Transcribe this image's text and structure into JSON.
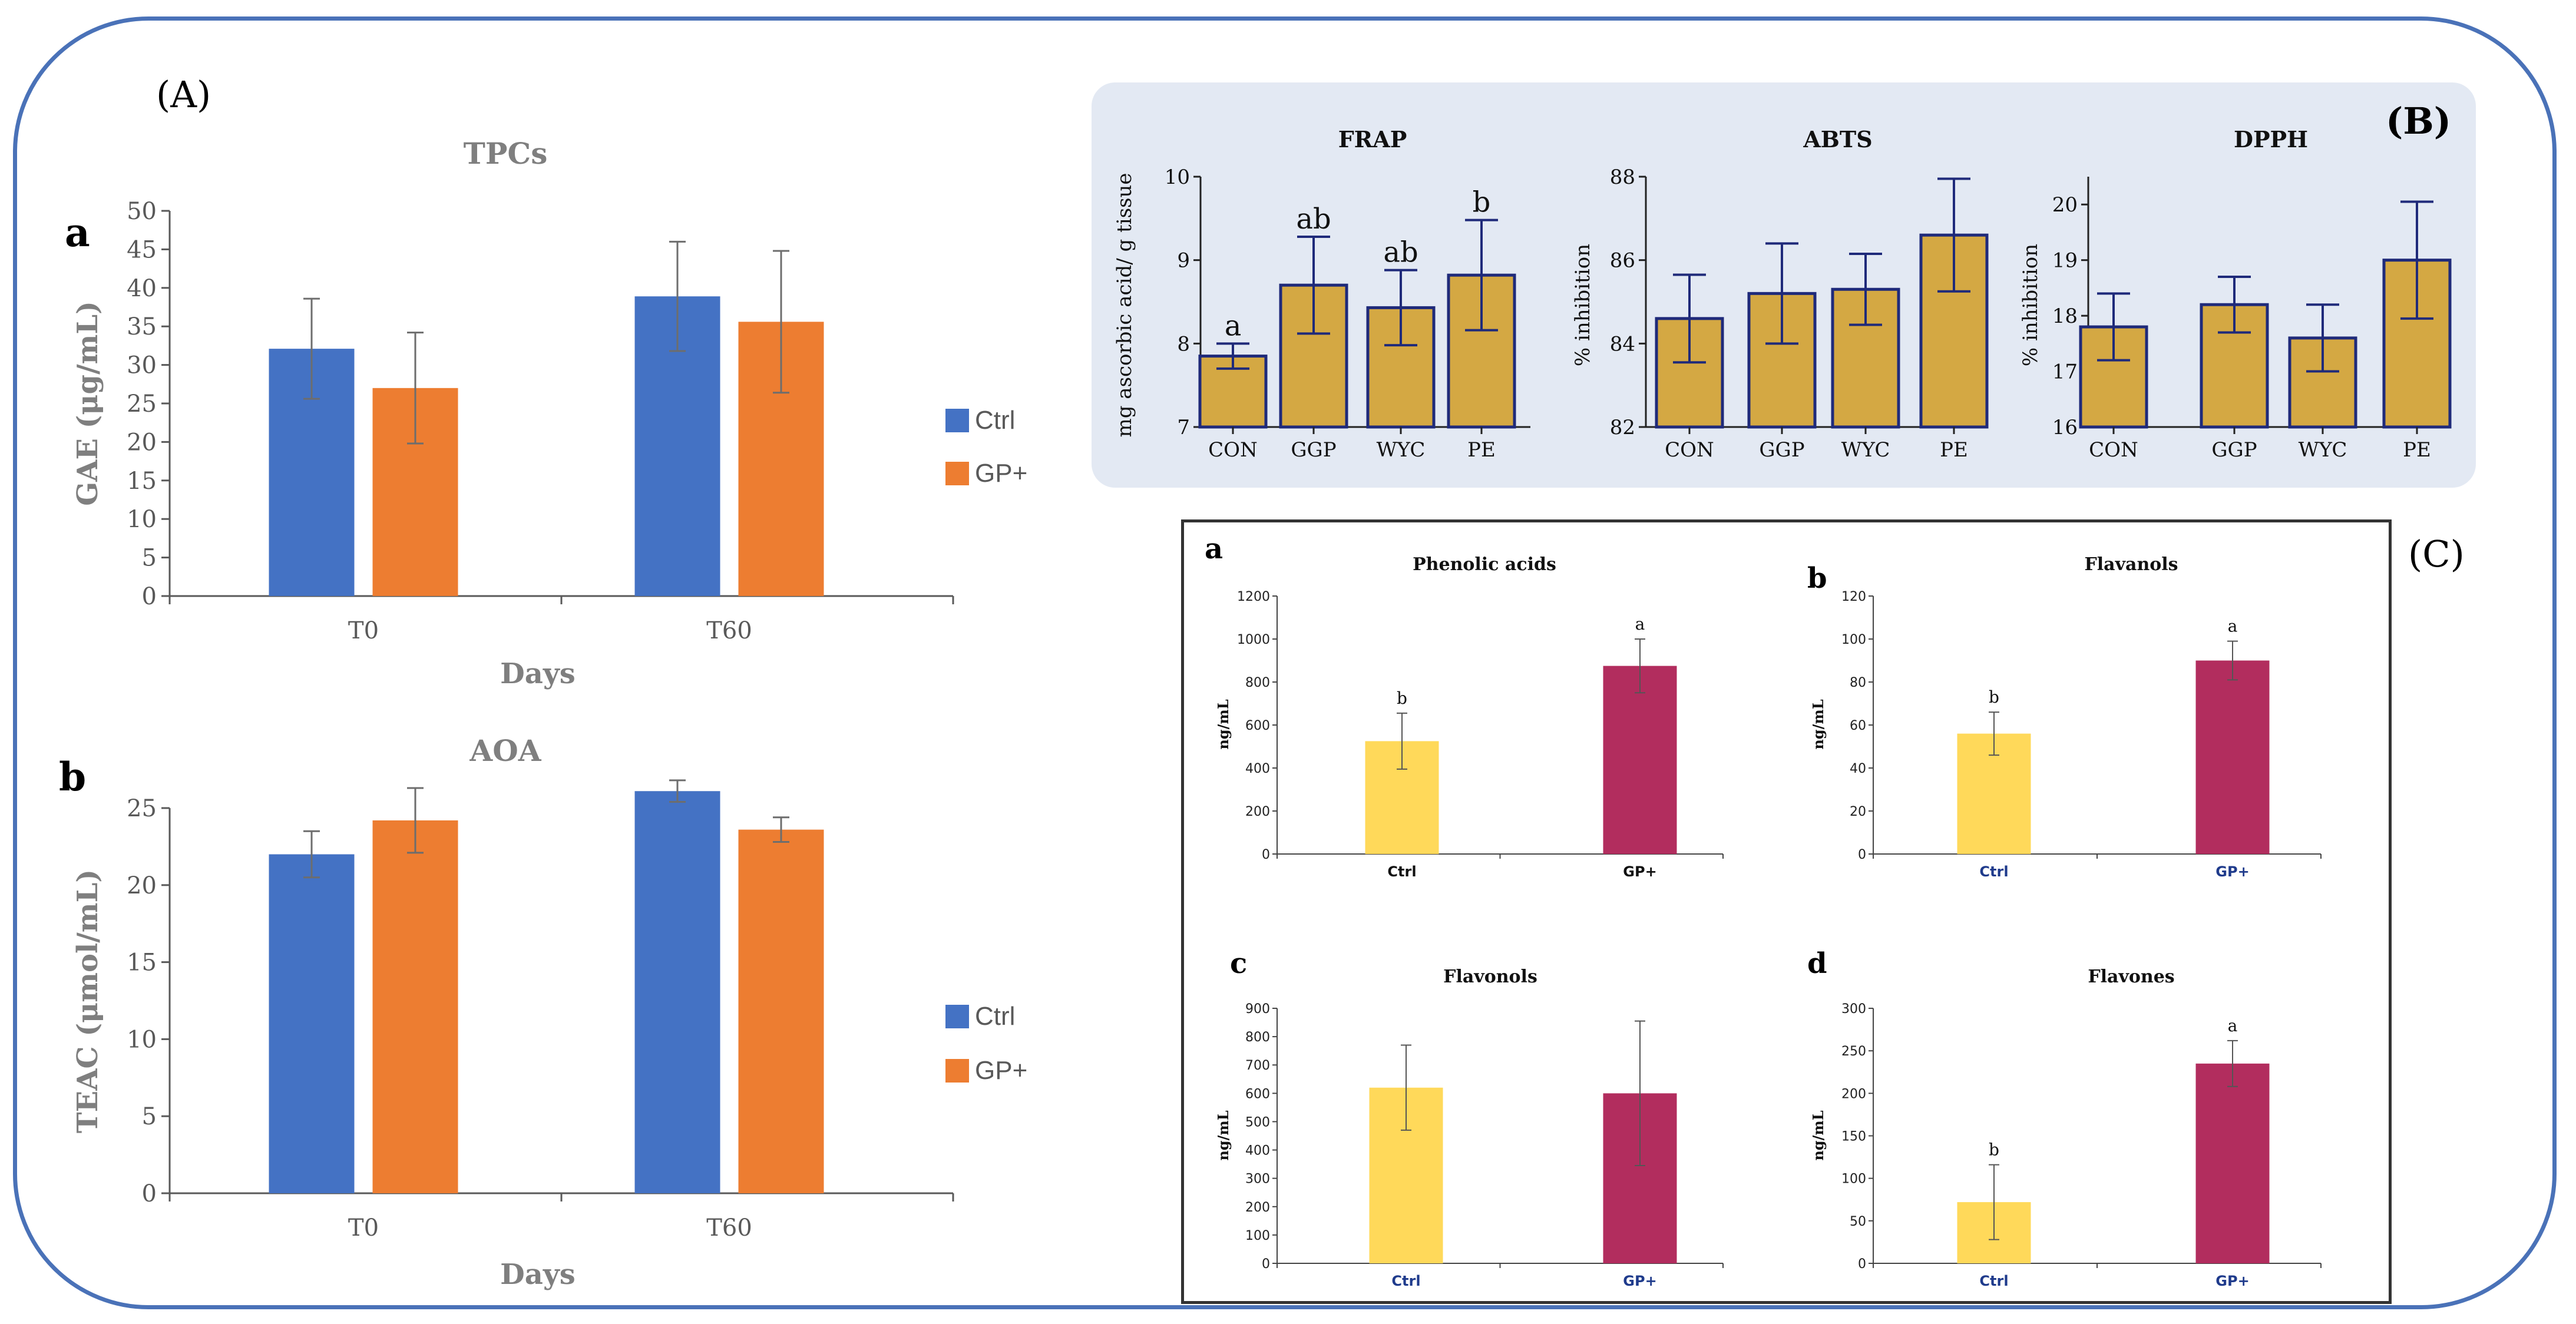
{
  "panel_labels": {
    "A": "(A)",
    "B": "(B)",
    "C": "(C)"
  },
  "sub_labels": {
    "Aa": "a",
    "Ab": "b",
    "Ca": "a",
    "Cb": "b",
    "Cc": "c",
    "Cd": "d"
  },
  "colors": {
    "ctrl_blue": "#4472c4",
    "gp_orange": "#ed7d31",
    "b_bar": "#d4a843",
    "b_edge": "#1f2a7a",
    "c_yellow": "#ffd95a",
    "c_magenta": "#b22d5e",
    "frame": "#4a72b8",
    "panel_b_bg": "#e3e9f3"
  },
  "chart_data": [
    {
      "id": "A-a",
      "type": "bar",
      "title": "TPCs",
      "xlabel": "Days",
      "ylabel": "GAE (μg/mL)",
      "categories": [
        "T0",
        "T60"
      ],
      "ylim": [
        0,
        50
      ],
      "yticks": [
        0,
        5,
        10,
        15,
        20,
        25,
        30,
        35,
        40,
        45,
        50
      ],
      "series": [
        {
          "name": "Ctrl",
          "values": [
            32.1,
            38.9
          ],
          "errors": [
            6.5,
            7.1
          ]
        },
        {
          "name": "GP+",
          "values": [
            27.0,
            35.6
          ],
          "errors": [
            7.2,
            9.2
          ]
        }
      ],
      "legend": [
        "Ctrl",
        "GP+"
      ],
      "legend_position": "right"
    },
    {
      "id": "A-b",
      "type": "bar",
      "title": "AOA",
      "xlabel": "Days",
      "ylabel": "TEAC (μmol/mL)",
      "categories": [
        "T0",
        "T60"
      ],
      "ylim": [
        0,
        25
      ],
      "yticks": [
        0,
        5,
        10,
        15,
        20,
        25
      ],
      "series": [
        {
          "name": "Ctrl",
          "values": [
            22.0,
            26.1
          ],
          "errors": [
            1.5,
            0.7
          ]
        },
        {
          "name": "GP+",
          "values": [
            24.2,
            23.6
          ],
          "errors": [
            2.1,
            0.8
          ]
        }
      ],
      "legend": [
        "Ctrl",
        "GP+"
      ],
      "legend_position": "right"
    },
    {
      "id": "B-FRAP",
      "type": "bar",
      "title": "FRAP",
      "ylabel": "mg ascorbic acid/ g tissue",
      "categories": [
        "CON",
        "GGP",
        "WYC",
        "PE"
      ],
      "values": [
        7.85,
        8.7,
        8.43,
        8.82
      ],
      "errors": [
        0.15,
        0.58,
        0.45,
        0.66
      ],
      "letters": [
        "a",
        "ab",
        "ab",
        "b"
      ],
      "ylim": [
        7,
        10
      ],
      "yticks": [
        7,
        8,
        9,
        10
      ]
    },
    {
      "id": "B-ABTS",
      "type": "bar",
      "title": "ABTS",
      "ylabel": "% inhibition",
      "categories": [
        "CON",
        "GGP",
        "WYC",
        "PE"
      ],
      "values": [
        84.6,
        85.2,
        85.3,
        86.6
      ],
      "errors": [
        1.05,
        1.2,
        0.85,
        1.35
      ],
      "ylim": [
        82,
        88
      ],
      "yticks": [
        82,
        84,
        86,
        88
      ]
    },
    {
      "id": "B-DPPH",
      "type": "bar",
      "title": "DPPH",
      "ylabel": "% inhibition",
      "categories": [
        "CON",
        "GGP",
        "WYC",
        "PE"
      ],
      "values": [
        17.8,
        18.2,
        17.6,
        19.0
      ],
      "errors": [
        0.6,
        0.5,
        0.6,
        1.05
      ],
      "ylim": [
        16,
        20.5
      ],
      "yticks": [
        16,
        17,
        18,
        19,
        20
      ]
    },
    {
      "id": "C-a",
      "type": "bar",
      "title": "Phenolic acids",
      "ylabel": "ng/mL",
      "categories": [
        "Ctrl",
        "GP+"
      ],
      "values": [
        525,
        875
      ],
      "errors": [
        130,
        125
      ],
      "letters": [
        "b",
        "a"
      ],
      "ylim": [
        0,
        1200
      ],
      "yticks": [
        0,
        200,
        400,
        600,
        800,
        1000,
        1200
      ]
    },
    {
      "id": "C-b",
      "type": "bar",
      "title": "Flavanols",
      "ylabel": "ng/mL",
      "categories": [
        "Ctrl",
        "GP+"
      ],
      "values": [
        56,
        90
      ],
      "errors": [
        10,
        9
      ],
      "letters": [
        "b",
        "a"
      ],
      "ylim": [
        0,
        120
      ],
      "yticks": [
        0,
        20,
        40,
        60,
        80,
        100,
        120
      ]
    },
    {
      "id": "C-c",
      "type": "bar",
      "title": "Flavonols",
      "ylabel": "ng/mL",
      "categories": [
        "Ctrl",
        "GP+"
      ],
      "values": [
        620,
        600
      ],
      "errors": [
        150,
        255
      ],
      "ylim": [
        0,
        900
      ],
      "yticks": [
        0,
        100,
        200,
        300,
        400,
        500,
        600,
        700,
        800,
        900
      ]
    },
    {
      "id": "C-d",
      "type": "bar",
      "title": "Flavones",
      "ylabel": "ng/mL",
      "categories": [
        "Ctrl",
        "GP+"
      ],
      "values": [
        72,
        235
      ],
      "errors": [
        44,
        27
      ],
      "letters": [
        "b",
        "a"
      ],
      "ylim": [
        0,
        300
      ],
      "yticks": [
        0,
        50,
        100,
        150,
        200,
        250,
        300
      ]
    }
  ]
}
